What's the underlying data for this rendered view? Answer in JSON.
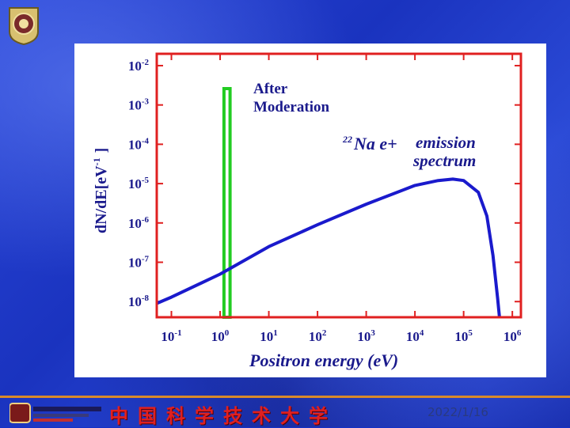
{
  "slide": {
    "date": "2022/1/16",
    "footer_university": "中国科学技术大学",
    "colors": {
      "background": "#1a33bf",
      "frame": "#e02020",
      "curve": "#1a1acc",
      "box": "#22cc22",
      "text": "#1a1a8c",
      "footer_line": "#d98a2a"
    },
    "icons": [
      "university-seal-icon",
      "university-logo-icon"
    ]
  },
  "chart_data": {
    "type": "line",
    "title": "",
    "xlabel": "Positron energy (eV)",
    "ylabel_main": "dN/dE[eV",
    "ylabel_sup": "-1",
    "ylabel_end": "]",
    "x_scale": "log",
    "y_scale": "log",
    "xlim": [
      0.05,
      1500000
    ],
    "ylim": [
      4e-09,
      0.02
    ],
    "x_ticks": [
      {
        "value": 0.1,
        "base": "10",
        "exp": "-1"
      },
      {
        "value": 1,
        "base": "10",
        "exp": "0"
      },
      {
        "value": 10,
        "base": "10",
        "exp": "1"
      },
      {
        "value": 100,
        "base": "10",
        "exp": "2"
      },
      {
        "value": 1000,
        "base": "10",
        "exp": "3"
      },
      {
        "value": 10000,
        "base": "10",
        "exp": "4"
      },
      {
        "value": 100000,
        "base": "10",
        "exp": "5"
      },
      {
        "value": 1000000,
        "base": "10",
        "exp": "6"
      }
    ],
    "y_ticks": [
      {
        "value": 0.01,
        "base": "10",
        "exp": "-2"
      },
      {
        "value": 0.001,
        "base": "10",
        "exp": "-3"
      },
      {
        "value": 0.0001,
        "base": "10",
        "exp": "-4"
      },
      {
        "value": 1e-05,
        "base": "10",
        "exp": "-5"
      },
      {
        "value": 1e-06,
        "base": "10",
        "exp": "-6"
      },
      {
        "value": 1e-07,
        "base": "10",
        "exp": "-7"
      },
      {
        "value": 1e-08,
        "base": "10",
        "exp": "-8"
      }
    ],
    "series": [
      {
        "x": [
          0.05,
          0.1,
          1,
          10,
          100,
          1000,
          10000,
          30000,
          60000,
          100000,
          200000,
          300000,
          400000,
          500000,
          545000
        ],
        "y": [
          9e-09,
          1.3e-08,
          5e-08,
          2.5e-07,
          9e-07,
          3e-06,
          9e-06,
          1.2e-05,
          1.3e-05,
          1.2e-05,
          6e-06,
          1.5e-06,
          1.5e-07,
          1.2e-08,
          4e-09
        ]
      }
    ],
    "annotations": {
      "moderation_label_1": "After",
      "moderation_label_2": "Moderation",
      "moderation_box_x": [
        1.2,
        1.6
      ],
      "emission_sup": "22",
      "emission_na": "Na e+",
      "emission_word": "emission",
      "emission_spectrum": "spectrum"
    }
  }
}
